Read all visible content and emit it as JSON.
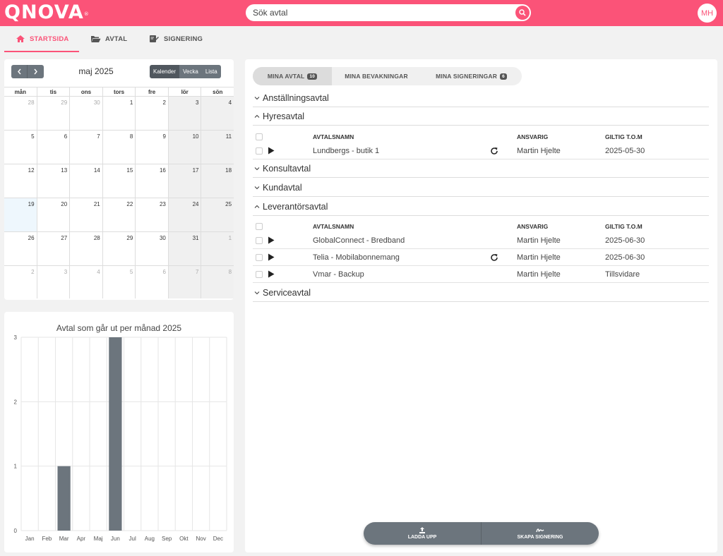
{
  "header": {
    "logo": "QNOVA",
    "logo_mark": "®",
    "search_placeholder": "Sök avtal",
    "avatar_initials": "MH",
    "accent_color": "#fb5378"
  },
  "nav": {
    "tabs": [
      {
        "label": "STARTSIDA",
        "icon": "home-icon",
        "active": true
      },
      {
        "label": "AVTAL",
        "icon": "folder-icon",
        "active": false
      },
      {
        "label": "SIGNERING",
        "icon": "signature-icon",
        "active": false
      }
    ]
  },
  "calendar": {
    "month_label": "maj 2025",
    "views": [
      "Kalender",
      "Vecka",
      "Lista"
    ],
    "active_view": "Kalender",
    "weekdays": [
      "mån",
      "tis",
      "ons",
      "tors",
      "fre",
      "lör",
      "sön"
    ],
    "weeks": [
      [
        "28",
        "29",
        "30",
        "1",
        "2",
        "3",
        "4"
      ],
      [
        "5",
        "6",
        "7",
        "8",
        "9",
        "10",
        "11"
      ],
      [
        "12",
        "13",
        "14",
        "15",
        "16",
        "17",
        "18"
      ],
      [
        "19",
        "20",
        "21",
        "22",
        "23",
        "24",
        "25"
      ],
      [
        "26",
        "27",
        "28",
        "29",
        "30",
        "31",
        "1"
      ],
      [
        "2",
        "3",
        "4",
        "5",
        "6",
        "7",
        "8"
      ]
    ],
    "today": "19"
  },
  "chart_data": {
    "type": "bar",
    "title": "Avtal som går ut per månad 2025",
    "categories": [
      "Jan",
      "Feb",
      "Mar",
      "Apr",
      "Maj",
      "Jun",
      "Jul",
      "Aug",
      "Sep",
      "Okt",
      "Nov",
      "Dec"
    ],
    "values": [
      0,
      0,
      1,
      0,
      0,
      3,
      0,
      0,
      0,
      0,
      0,
      0
    ],
    "ylim": [
      0,
      3
    ],
    "yticks": [
      "0",
      "1",
      "2",
      "3"
    ],
    "xlabel": "",
    "ylabel": "",
    "grid": true,
    "bar_color": "#6c757d"
  },
  "main": {
    "tabs": [
      {
        "label": "MINA AVTAL",
        "badge": "10",
        "active": true
      },
      {
        "label": "MINA BEVAKNINGAR",
        "badge": "",
        "active": false
      },
      {
        "label": "MINA SIGNERINGAR",
        "badge": "6",
        "active": false
      }
    ],
    "columns": {
      "name": "AVTALSNAMN",
      "responsible": "ANSVARIG",
      "valid": "GILTIG T.O.M"
    },
    "sections": [
      {
        "label": "Anställningsavtal",
        "expanded": false
      },
      {
        "label": "Hyresavtal",
        "expanded": true
      },
      {
        "label": "Konsultavtal",
        "expanded": false
      },
      {
        "label": "Kundavtal",
        "expanded": false
      },
      {
        "label": "Leverantörsavtal",
        "expanded": true
      },
      {
        "label": "Serviceavtal",
        "expanded": false
      }
    ],
    "hyres_rows": [
      {
        "name": "Lundbergs - butik 1",
        "renew": true,
        "responsible": "Martin Hjelte",
        "valid": "2025-05-30"
      }
    ],
    "lev_rows": [
      {
        "name": "GlobalConnect - Bredband",
        "renew": false,
        "responsible": "Martin Hjelte",
        "valid": "2025-06-30"
      },
      {
        "name": "Telia - Mobilabonnemang",
        "renew": true,
        "responsible": "Martin Hjelte",
        "valid": "2025-06-30"
      },
      {
        "name": "Vmar - Backup",
        "renew": false,
        "responsible": "Martin Hjelte",
        "valid": "Tillsvidare"
      }
    ]
  },
  "actions": {
    "upload": "LADDA UPP",
    "sign": "SKAPA SIGNERING"
  }
}
